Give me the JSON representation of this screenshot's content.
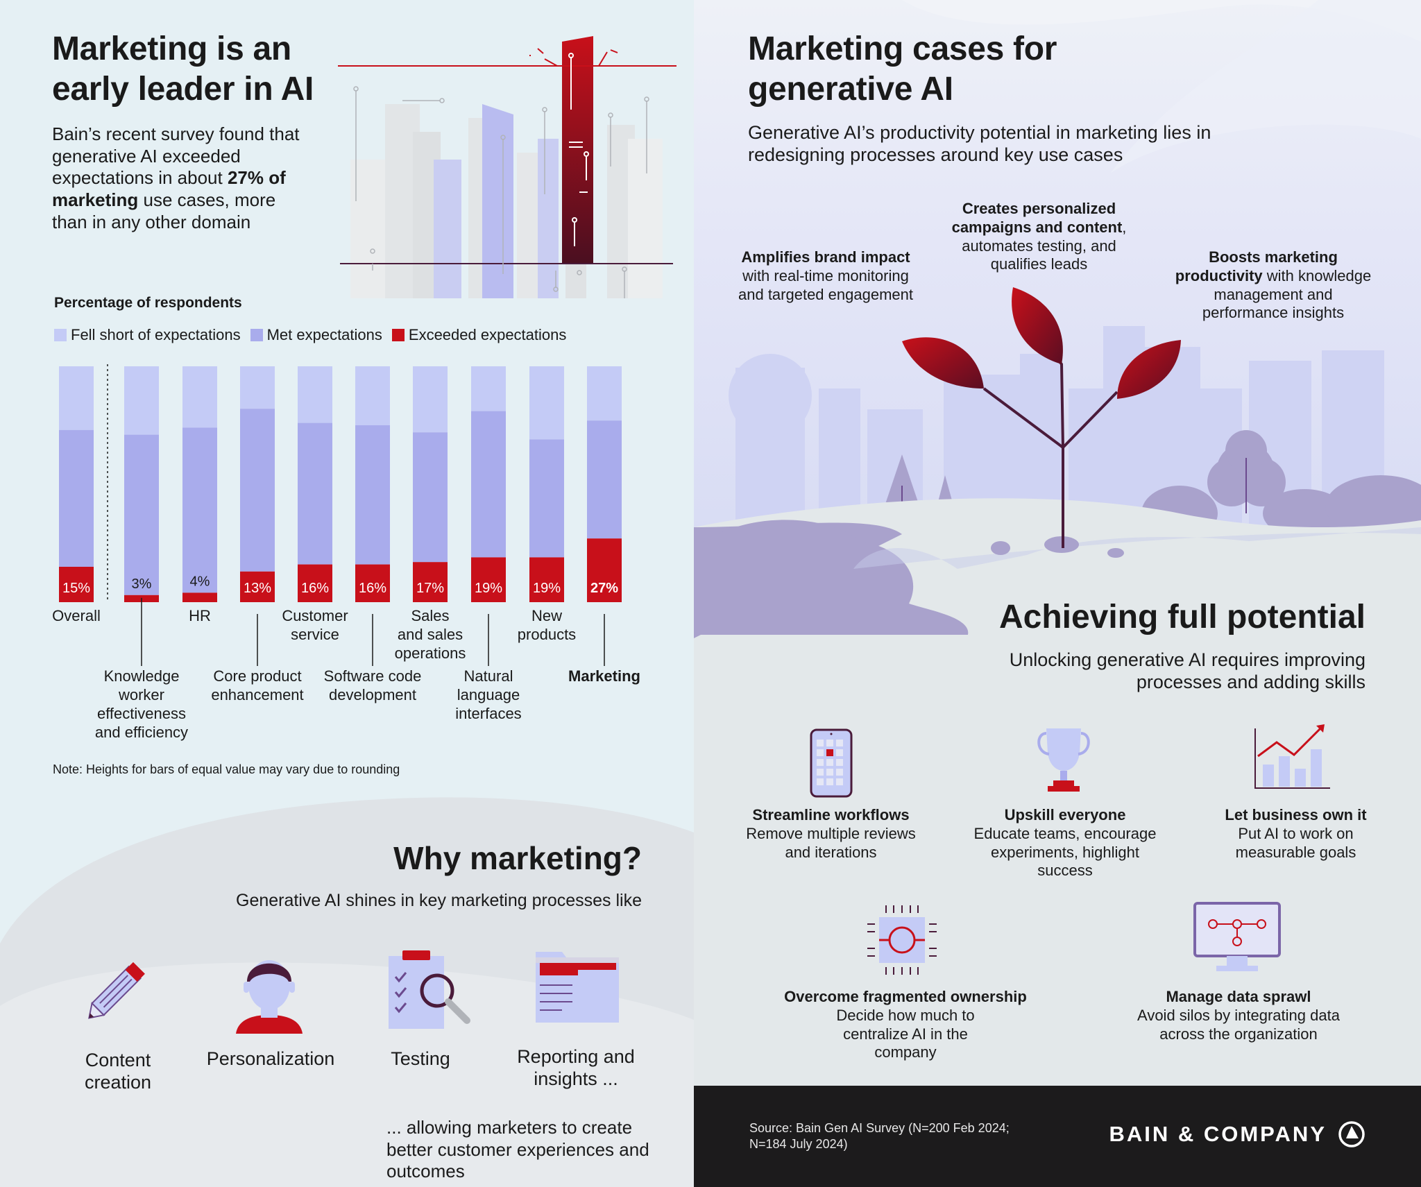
{
  "left": {
    "title": "Marketing is an early leader in AI",
    "intro": {
      "part1": "Bain’s recent survey found that generative AI exceeded expectations in about ",
      "bold1": "27% of marketing",
      "part2": " use cases, more than in any other domain"
    },
    "percentage_label": "Percentage of respondents",
    "legend": [
      "Fell short of expectations",
      "Met expectations",
      "Exceeded expectations"
    ],
    "note": "Note: Heights for bars of equal value may vary due to rounding"
  },
  "colors": {
    "fell_short": "#c4cbf6",
    "met": "#a9acec",
    "exceeded": "#c8101a",
    "dark_red": "#7a0b1c",
    "plum": "#4a1b3a"
  },
  "chart_data": {
    "type": "bar",
    "stacked": true,
    "ylabel": "Percentage of respondents",
    "ylim": [
      0,
      100
    ],
    "categories": [
      "Overall",
      "Knowledge worker effectiveness and efficiency",
      "HR",
      "Core product enhancement",
      "Customer service",
      "Software code development",
      "Sales and sales operations",
      "Natural language interfaces",
      "New products",
      "Marketing"
    ],
    "category_lines": [
      [
        "Overall"
      ],
      [
        "Knowledge",
        "worker",
        "effectiveness",
        "and efficiency"
      ],
      [
        "HR"
      ],
      [
        "Core product",
        "enhancement"
      ],
      [
        "Customer",
        "service"
      ],
      [
        "Software code",
        "development"
      ],
      [
        "Sales",
        "and sales",
        "operations"
      ],
      [
        "Natural",
        "language",
        "interfaces"
      ],
      [
        "New",
        "products"
      ],
      [
        "Marketing"
      ]
    ],
    "label_below": [
      false,
      true,
      false,
      true,
      false,
      true,
      false,
      true,
      false,
      true
    ],
    "series": [
      {
        "name": "Exceeded expectations",
        "values": [
          15,
          3,
          4,
          13,
          16,
          16,
          17,
          19,
          19,
          27
        ]
      },
      {
        "name": "Met expectations",
        "values": [
          58,
          68,
          70,
          69,
          60,
          59,
          55,
          62,
          50,
          50
        ]
      },
      {
        "name": "Fell short of expectations",
        "values": [
          27,
          29,
          26,
          18,
          24,
          25,
          28,
          19,
          31,
          23
        ]
      }
    ],
    "data_labels": [
      "15%",
      "3%",
      "4%",
      "13%",
      "16%",
      "16%",
      "17%",
      "19%",
      "19%",
      "27%"
    ],
    "legend_position": "top-left"
  },
  "why": {
    "title": "Why marketing?",
    "subtitle": "Generative AI shines in key marketing processes like",
    "items": [
      {
        "label_l1": "Content",
        "label_l2": "creation",
        "icon": "pencil-icon"
      },
      {
        "label_l1": "Personalization",
        "label_l2": "",
        "icon": "person-icon"
      },
      {
        "label_l1": "Testing",
        "label_l2": "",
        "icon": "clipboard-magnifier-icon"
      },
      {
        "label_l1": "Reporting and",
        "label_l2": "insights ...",
        "icon": "folder-report-icon"
      }
    ],
    "footer": "... allowing marketers to create better customer experiences and outcomes"
  },
  "right": {
    "title": "Marketing cases for generative AI",
    "subtitle": "Generative AI’s productivity potential in marketing lies in redesigning processes around key use cases",
    "cases": [
      {
        "bold": "Amplifies brand impact",
        "rest": " with real-time monitoring and targeted engagement"
      },
      {
        "bold": "Creates personalized campaigns and content",
        "rest": ", automates testing, and qualifies leads"
      },
      {
        "bold": "Boosts marketing productivity",
        "rest": " with knowledge management and performance insights"
      }
    ],
    "achieving_title": "Achieving full potential",
    "achieving_sub": "Unlocking generative AI requires improving processes and adding skills",
    "actions": [
      {
        "title": "Streamline workflows",
        "desc": "Remove multiple reviews and iterations",
        "icon": "phone-grid-icon"
      },
      {
        "title": "Upskill everyone",
        "desc": "Educate teams, encourage experiments, highlight success",
        "icon": "trophy-icon"
      },
      {
        "title": "Let business own it",
        "desc": "Put AI to work on measurable goals",
        "icon": "growth-chart-icon"
      },
      {
        "title": "Overcome fragmented ownership",
        "desc": "Decide how much to centralize AI in the company",
        "icon": "chip-icon"
      },
      {
        "title": "Manage data sprawl",
        "desc": "Avoid silos by integrating data across the organization",
        "icon": "monitor-network-icon"
      }
    ]
  },
  "footer": {
    "source": "Source: Bain Gen AI Survey (N=200 Feb 2024; N=184 July 2024)",
    "logo": "BAIN & COMPANY"
  }
}
